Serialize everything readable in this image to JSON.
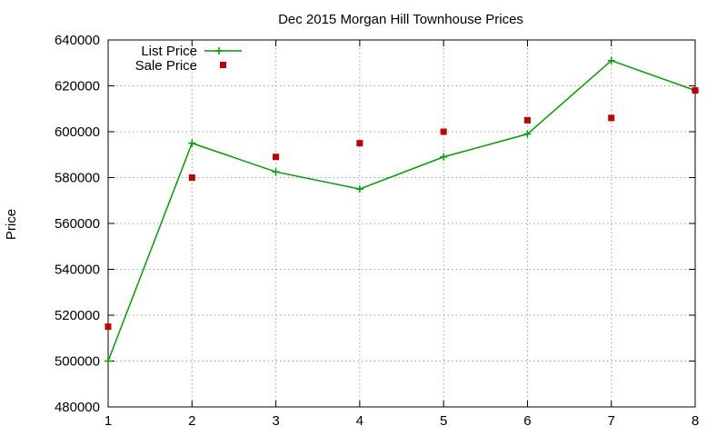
{
  "chart_data": {
    "type": "line",
    "title": "Dec 2015 Morgan Hill Townhouse Prices",
    "xlabel": "",
    "ylabel": "Price",
    "xlim": [
      1,
      8
    ],
    "ylim": [
      480000,
      640000
    ],
    "x_ticks": [
      1,
      2,
      3,
      4,
      5,
      6,
      7,
      8
    ],
    "y_ticks": [
      480000,
      500000,
      520000,
      540000,
      560000,
      580000,
      600000,
      620000,
      640000
    ],
    "grid": true,
    "legend_position": "top-left",
    "series": [
      {
        "name": "List Price",
        "style": "linespoints",
        "marker": "plus",
        "color": "#009e00",
        "x": [
          1,
          2,
          3,
          4,
          5,
          6,
          7,
          8
        ],
        "y": [
          500000,
          595000,
          582500,
          575000,
          589000,
          599000,
          631000,
          618000
        ]
      },
      {
        "name": "Sale Price",
        "style": "points",
        "marker": "square",
        "color": "#c00000",
        "x": [
          1,
          2,
          3,
          4,
          5,
          6,
          7,
          8
        ],
        "y": [
          515000,
          580000,
          589000,
          595000,
          600000,
          605000,
          606000,
          618000
        ]
      }
    ]
  }
}
